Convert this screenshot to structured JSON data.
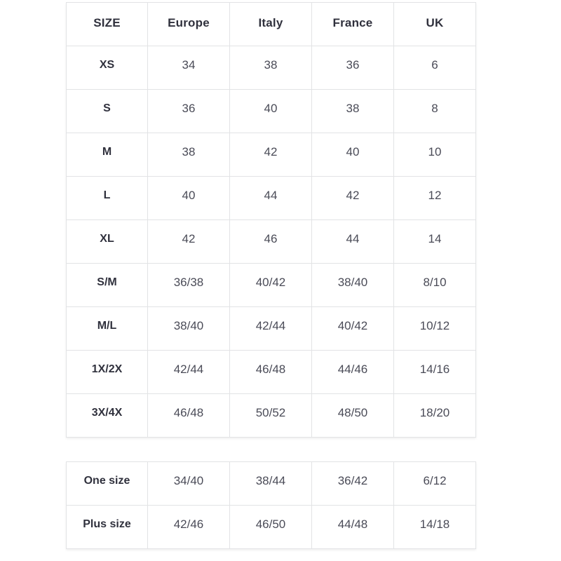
{
  "size_chart": {
    "columns": [
      "SIZE",
      "Europe",
      "Italy",
      "France",
      "UK"
    ],
    "rows": [
      {
        "label": "XS",
        "values": [
          "34",
          "38",
          "36",
          "6"
        ]
      },
      {
        "label": "S",
        "values": [
          "36",
          "40",
          "38",
          "8"
        ]
      },
      {
        "label": "M",
        "values": [
          "38",
          "42",
          "40",
          "10"
        ]
      },
      {
        "label": "L",
        "values": [
          "40",
          "44",
          "42",
          "12"
        ]
      },
      {
        "label": "XL",
        "values": [
          "42",
          "46",
          "44",
          "14"
        ]
      },
      {
        "label": "S/M",
        "values": [
          "36/38",
          "40/42",
          "38/40",
          "8/10"
        ]
      },
      {
        "label": "M/L",
        "values": [
          "38/40",
          "42/44",
          "40/42",
          "10/12"
        ]
      },
      {
        "label": "1X/2X",
        "values": [
          "42/44",
          "46/48",
          "44/46",
          "14/16"
        ]
      },
      {
        "label": "3X/4X",
        "values": [
          "46/48",
          "50/52",
          "48/50",
          "18/20"
        ]
      }
    ]
  },
  "special_sizes": {
    "rows": [
      {
        "label": "One size",
        "values": [
          "34/40",
          "38/44",
          "36/42",
          "6/12"
        ]
      },
      {
        "label": "Plus size",
        "values": [
          "42/46",
          "46/50",
          "44/48",
          "14/18"
        ]
      }
    ]
  },
  "colors": {
    "border": "#e2e3e5",
    "heading_text": "#30313d",
    "value_text": "#4a4b57",
    "background": "#ffffff"
  }
}
